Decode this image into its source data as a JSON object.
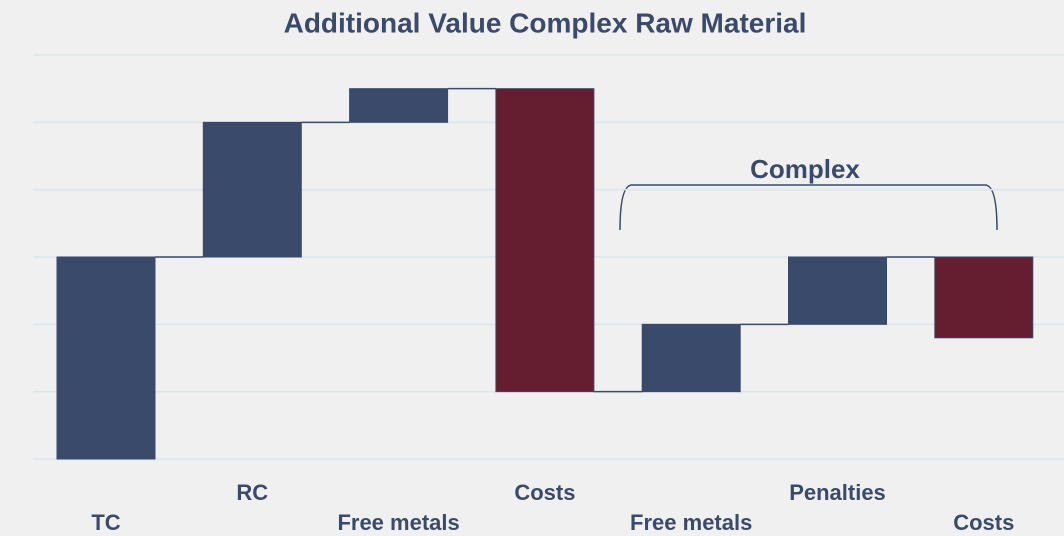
{
  "chart_data": {
    "type": "floating-bar",
    "title": "Additional Value Complex Raw Material",
    "categories": [
      "TC",
      "RC",
      "Free metals",
      "Costs",
      "Free metals",
      "Penalties",
      "Costs"
    ],
    "ranges": [
      [
        0,
        -3
      ],
      [
        0,
        2
      ],
      [
        2,
        2.5
      ],
      [
        2.5,
        -2
      ],
      [
        -2,
        -1
      ],
      [
        -1,
        0
      ],
      [
        0,
        -1.2
      ]
    ],
    "colors": [
      "#3a4a6b",
      "#3a4a6b",
      "#3a4a6b",
      "#641e30",
      "#3a4a6b",
      "#3a4a6b",
      "#641e30"
    ],
    "ylim": [
      -3,
      3
    ],
    "yticks": [
      -3,
      -2,
      -1,
      0,
      1,
      2,
      3
    ],
    "grid": true,
    "annotation": "Complex"
  }
}
